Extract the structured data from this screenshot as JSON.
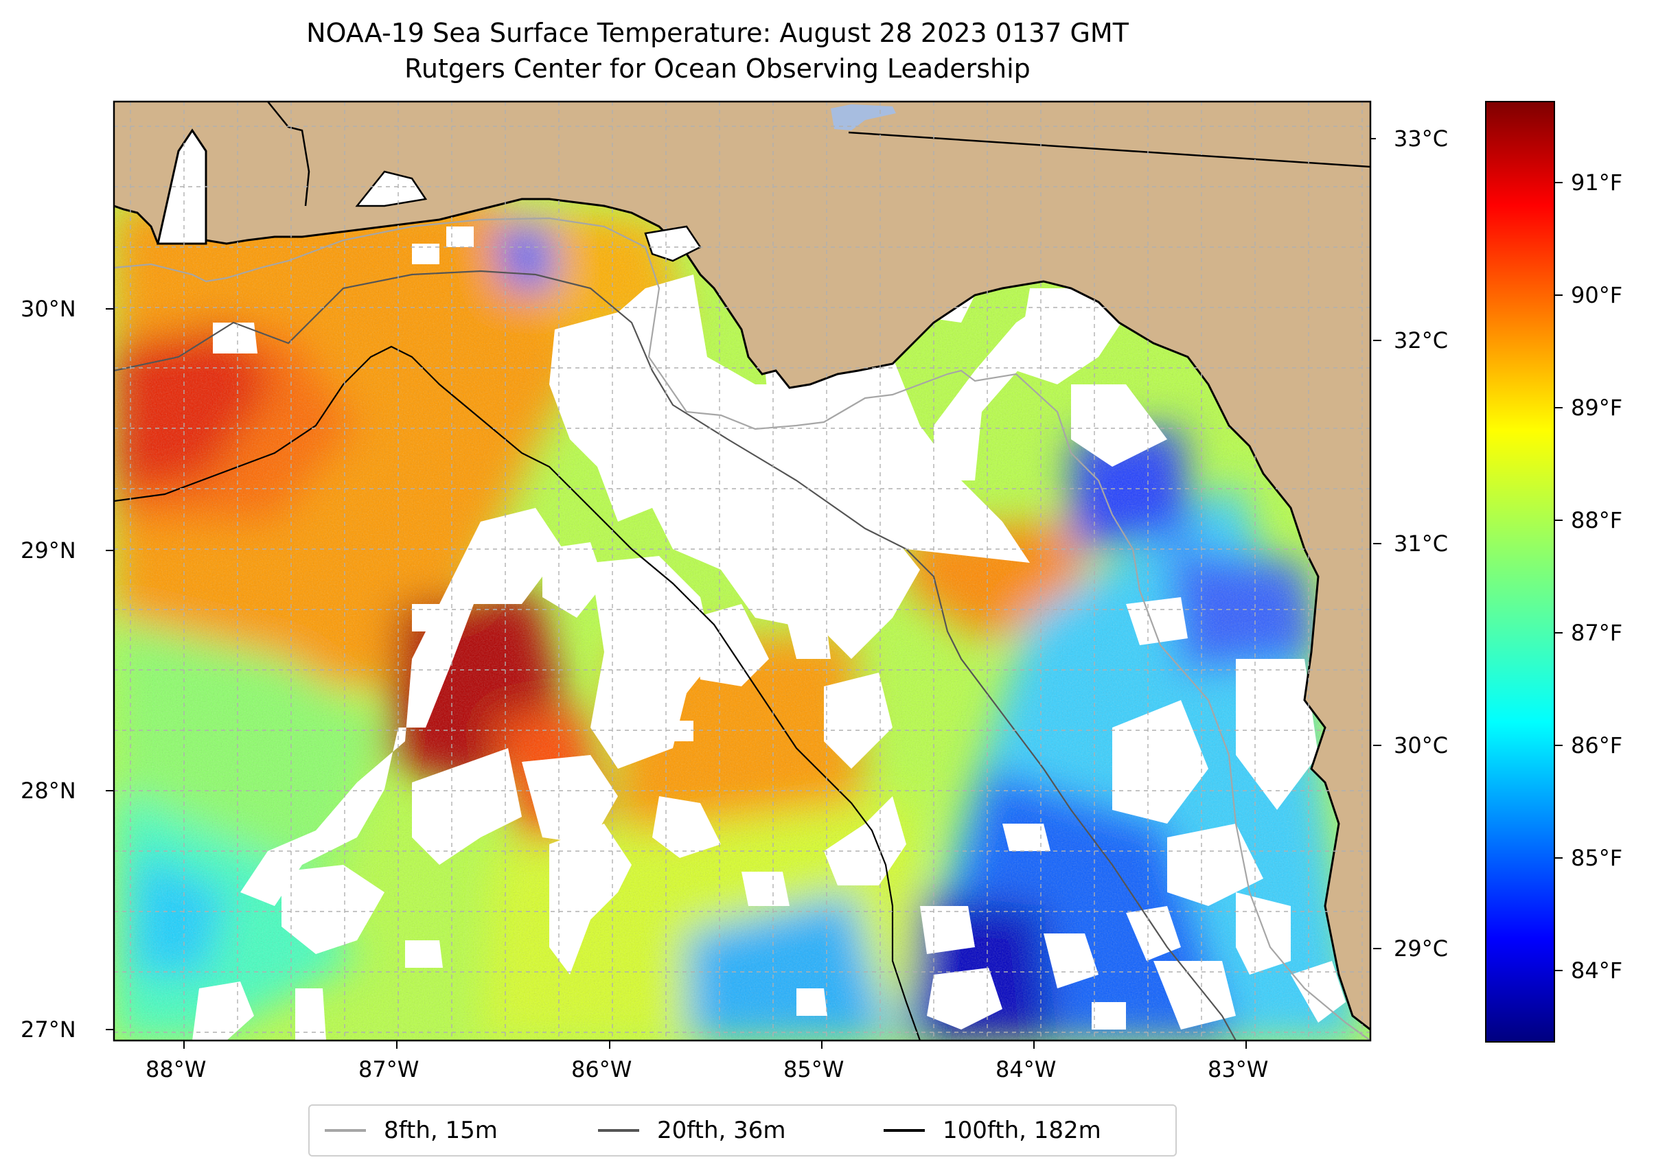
{
  "title": {
    "line1": "NOAA-19 Sea Surface Temperature: August 28 2023 0137 GMT",
    "line2": "Rutgers Center for Ocean Observing Leadership"
  },
  "map": {
    "region": "Eastern Gulf of Mexico / Florida Panhandle",
    "land_color": "#d2b48c",
    "cloud_color": "#ffffff",
    "lon_ticks": [
      "88°W",
      "87°W",
      "86°W",
      "85°W",
      "84°W",
      "83°W"
    ],
    "lat_ticks": [
      "30°N",
      "29°N",
      "28°N",
      "27°N"
    ]
  },
  "colorbar": {
    "colormap": "jet",
    "celsius_ticks": [
      "33°C",
      "32°C",
      "31°C",
      "30°C",
      "29°C"
    ],
    "fahrenheit_ticks": [
      "91°F",
      "90°F",
      "89°F",
      "88°F",
      "87°F",
      "86°F",
      "85°F",
      "84°F"
    ]
  },
  "legend": {
    "items": [
      {
        "label": "8fth, 15m",
        "color": "#a6a6a6"
      },
      {
        "label": "20fth, 36m",
        "color": "#555555"
      },
      {
        "label": "100fth, 182m",
        "color": "#000000"
      }
    ]
  }
}
